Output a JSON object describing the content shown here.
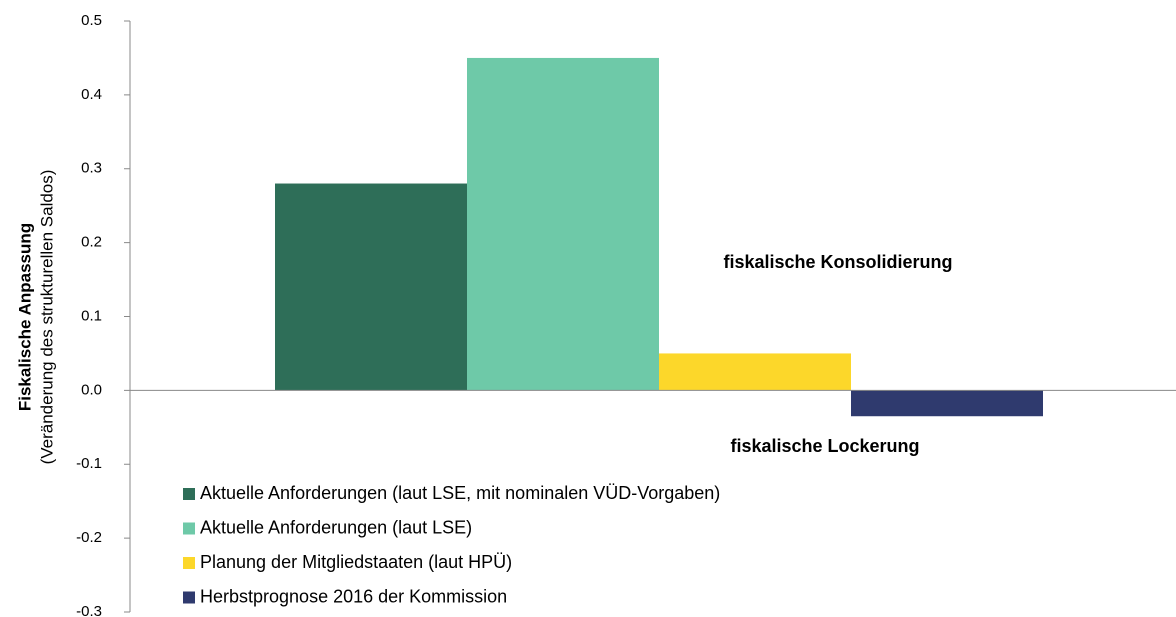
{
  "chart_data": {
    "type": "bar",
    "y_label": "Fiskalische Anpassung",
    "y_sublabel": "(Veränderung des strukturellen Saldos)",
    "annotations": [
      "fiskalische Konsolidierung",
      "fiskalische Lockerung"
    ],
    "categories": [
      null
    ],
    "series": [
      {
        "name": "Aktuelle Anforderungen (laut LSE, mit nominalen VÜD-Vorgaben)",
        "color": "#2e6e58",
        "values": [
          0.28
        ]
      },
      {
        "name": "Aktuelle Anforderungen (laut LSE)",
        "color": "#6ec9a8",
        "values": [
          0.45
        ]
      },
      {
        "name": "Planung der Mitgliedstaaten (laut HPÜ)",
        "color": "#fcd72a",
        "values": [
          0.05
        ]
      },
      {
        "name": "Herbstprognose 2016 der Kommission",
        "color": "#2f3a6e",
        "values": [
          -0.035
        ]
      }
    ],
    "ylim": [
      -0.3,
      0.5
    ],
    "yticks": [
      -0.3,
      -0.2,
      -0.1,
      {
        "value": 0,
        "label": "0.0"
      },
      0.1,
      0.2,
      0.3,
      0.4,
      0.5
    ],
    "grid": false,
    "legend": "bottom-left"
  }
}
